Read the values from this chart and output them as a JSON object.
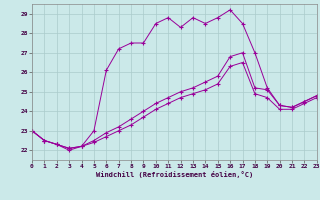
{
  "xlabel": "Windchill (Refroidissement éolien,°C)",
  "xlim": [
    0,
    23
  ],
  "ylim": [
    21.5,
    29.5
  ],
  "yticks": [
    22,
    23,
    24,
    25,
    26,
    27,
    28,
    29
  ],
  "xticks": [
    0,
    1,
    2,
    3,
    4,
    5,
    6,
    7,
    8,
    9,
    10,
    11,
    12,
    13,
    14,
    15,
    16,
    17,
    18,
    19,
    20,
    21,
    22,
    23
  ],
  "bg_color": "#cbe9e9",
  "grid_color": "#aacccc",
  "line_color": "#990099",
  "line1_x": [
    0,
    1,
    2,
    3,
    4,
    5,
    6,
    7,
    8,
    9,
    10,
    11,
    12,
    13,
    14,
    15,
    16,
    17,
    18,
    19,
    20,
    21,
    22,
    23
  ],
  "line1_y": [
    23.0,
    22.5,
    22.3,
    22.0,
    22.2,
    23.0,
    26.1,
    27.2,
    27.5,
    27.5,
    28.5,
    28.8,
    28.3,
    28.8,
    28.5,
    28.8,
    29.2,
    28.5,
    27.0,
    25.2,
    24.3,
    24.2,
    24.5,
    24.8
  ],
  "line2_x": [
    0,
    1,
    2,
    3,
    4,
    5,
    6,
    7,
    8,
    9,
    10,
    11,
    12,
    13,
    14,
    15,
    16,
    17,
    18,
    19,
    20,
    21,
    22,
    23
  ],
  "line2_y": [
    23.0,
    22.5,
    22.3,
    22.1,
    22.2,
    22.5,
    22.9,
    23.2,
    23.6,
    24.0,
    24.4,
    24.7,
    25.0,
    25.2,
    25.5,
    25.8,
    26.8,
    27.0,
    25.2,
    25.1,
    24.3,
    24.2,
    24.5,
    24.8
  ],
  "line3_x": [
    0,
    1,
    2,
    3,
    4,
    5,
    6,
    7,
    8,
    9,
    10,
    11,
    12,
    13,
    14,
    15,
    16,
    17,
    18,
    19,
    20,
    21,
    22,
    23
  ],
  "line3_y": [
    23.0,
    22.5,
    22.3,
    22.1,
    22.2,
    22.4,
    22.7,
    23.0,
    23.3,
    23.7,
    24.1,
    24.4,
    24.7,
    24.9,
    25.1,
    25.4,
    26.3,
    26.5,
    24.9,
    24.7,
    24.1,
    24.1,
    24.4,
    24.7
  ]
}
